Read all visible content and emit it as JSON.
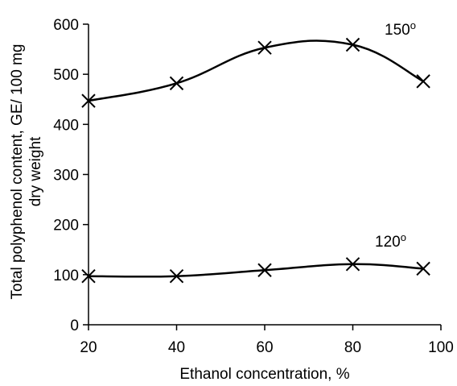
{
  "chart_data": {
    "type": "line",
    "title": "",
    "xlabel": "Ethanol concentration, %",
    "ylabel_line1": "Total polyphenol content, GE/ 100 mg",
    "ylabel_line2": "dry weight",
    "xlim": [
      20,
      100
    ],
    "ylim": [
      0,
      600
    ],
    "xticks": [
      20,
      40,
      60,
      80,
      100
    ],
    "yticks": [
      0,
      100,
      200,
      300,
      400,
      500,
      600
    ],
    "grid": false,
    "series": [
      {
        "name": "150",
        "label_superscript": "o",
        "x": [
          20,
          40,
          60,
          80,
          96
        ],
        "y": [
          447,
          482,
          553,
          559,
          486
        ]
      },
      {
        "name": "120",
        "label_superscript": "o",
        "x": [
          20,
          40,
          60,
          80,
          96
        ],
        "y": [
          97,
          97,
          109,
          121,
          112
        ]
      }
    ]
  }
}
